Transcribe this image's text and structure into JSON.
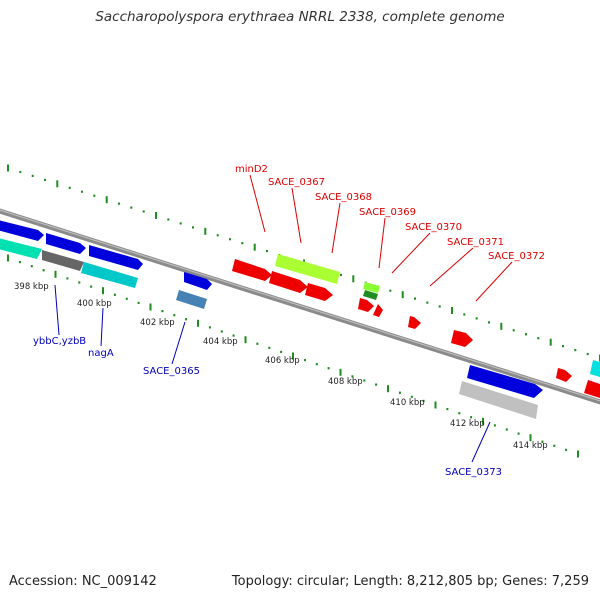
{
  "header": {
    "title": "Saccharopolyspora erythraea NRRL 2338, complete genome"
  },
  "footer": {
    "accession": "Accession: NC_009142",
    "summary": "Topology: circular; Length: 8,212,805 bp; Genes: 7,259"
  },
  "colors": {
    "backbone": "#8a8a8a",
    "tick": "#1e8c1e",
    "top_label": "#dd0000",
    "bottom_label": "#0000bb"
  },
  "scale_labels": [
    "398 kbp",
    "400 kbp",
    "402 kbp",
    "404 kbp",
    "406 kbp",
    "408 kbp",
    "410 kbp",
    "412 kbp",
    "414 kbp"
  ],
  "genes_top": [
    {
      "label": "minD2",
      "color": "#dd0000"
    },
    {
      "label": "SACE_0367",
      "color": "#dd0000"
    },
    {
      "label": "SACE_0368",
      "color": "#dd0000"
    },
    {
      "label": "SACE_0369",
      "color": "#dd0000"
    },
    {
      "label": "SACE_0370",
      "color": "#dd0000"
    },
    {
      "label": "SACE_0371",
      "color": "#dd0000"
    },
    {
      "label": "SACE_0372",
      "color": "#dd0000"
    }
  ],
  "genes_bottom": [
    {
      "label": "ybbC,yzbB",
      "color": "#0000bb"
    },
    {
      "label": "nagA",
      "color": "#0000bb"
    },
    {
      "label": "SACE_0365",
      "color": "#0000bb"
    },
    {
      "label": "SACE_0373",
      "color": "#0000bb"
    }
  ]
}
